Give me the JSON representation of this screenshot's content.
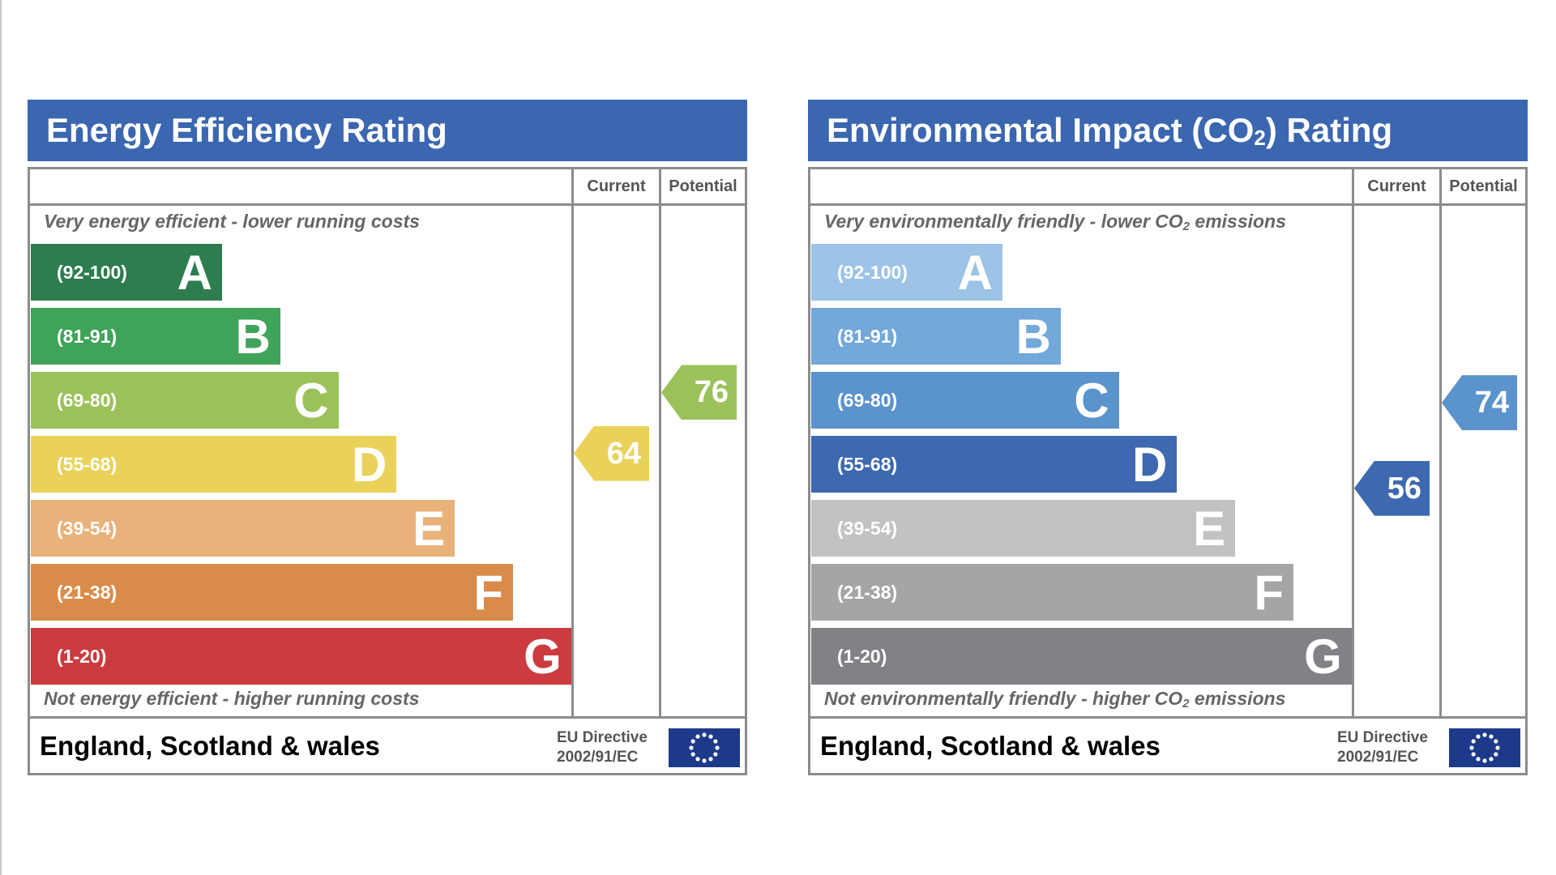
{
  "chart_data": [
    {
      "type": "bar",
      "title_main": "Energy Efficiency Rating",
      "title_sub": "",
      "title_suffix": "",
      "columns": {
        "current": "Current",
        "potential": "Potential"
      },
      "top_note_main": "Very energy efficient - lower running costs",
      "top_note_sub": "",
      "top_note_suffix": "",
      "bottom_note_main": "Not energy efficient - higher running costs",
      "bottom_note_sub": "",
      "bottom_note_suffix": "",
      "bands": [
        {
          "letter": "A",
          "range": "(92-100)",
          "min": 92,
          "max": 100,
          "color": "#2e7d4f"
        },
        {
          "letter": "B",
          "range": "(81-91)",
          "min": 81,
          "max": 91,
          "color": "#3fa35a"
        },
        {
          "letter": "C",
          "range": "(69-80)",
          "min": 69,
          "max": 80,
          "color": "#9bc25a"
        },
        {
          "letter": "D",
          "range": "(55-68)",
          "min": 55,
          "max": 68,
          "color": "#ead25a"
        },
        {
          "letter": "E",
          "range": "(39-54)",
          "min": 39,
          "max": 54,
          "color": "#e8b27a"
        },
        {
          "letter": "F",
          "range": "(21-38)",
          "min": 21,
          "max": 38,
          "color": "#d98c4a"
        },
        {
          "letter": "G",
          "range": "(1-20)",
          "min": 1,
          "max": 20,
          "color": "#cc3b3f"
        }
      ],
      "current": {
        "value": 64,
        "label": "64",
        "band": "D",
        "color": "#ead25a"
      },
      "potential": {
        "value": 76,
        "label": "76",
        "band": "C",
        "color": "#9bc25a"
      },
      "footer": {
        "region": "England, Scotland & wales",
        "directive_line1": "EU Directive",
        "directive_line2": "2002/91/EC"
      }
    },
    {
      "type": "bar",
      "title_main": "Environmental Impact (CO",
      "title_sub": "2",
      "title_suffix": ") Rating",
      "columns": {
        "current": "Current",
        "potential": "Potential"
      },
      "top_note_main": "Very environmentally friendly - lower CO",
      "top_note_sub": "2",
      "top_note_suffix": " emissions",
      "bottom_note_main": "Not environmentally friendly - higher CO",
      "bottom_note_sub": "2",
      "bottom_note_suffix": " emissions",
      "bands": [
        {
          "letter": "A",
          "range": "(92-100)",
          "min": 92,
          "max": 100,
          "color": "#9dc3e6"
        },
        {
          "letter": "B",
          "range": "(81-91)",
          "min": 81,
          "max": 91,
          "color": "#72a8da"
        },
        {
          "letter": "C",
          "range": "(69-80)",
          "min": 69,
          "max": 80,
          "color": "#5b93cc"
        },
        {
          "letter": "D",
          "range": "(55-68)",
          "min": 55,
          "max": 68,
          "color": "#3e69b0"
        },
        {
          "letter": "E",
          "range": "(39-54)",
          "min": 39,
          "max": 54,
          "color": "#c2c2c2"
        },
        {
          "letter": "F",
          "range": "(21-38)",
          "min": 21,
          "max": 38,
          "color": "#a5a5a8"
        },
        {
          "letter": "G",
          "range": "(1-20)",
          "min": 1,
          "max": 20,
          "color": "#828286"
        }
      ],
      "current": {
        "value": 56,
        "label": "56",
        "band": "D",
        "color": "#3e69b0"
      },
      "potential": {
        "value": 74,
        "label": "74",
        "band": "C",
        "color": "#5b93cc"
      },
      "footer": {
        "region": "England, Scotland & wales",
        "directive_line1": "EU Directive",
        "directive_line2": "2002/91/EC"
      }
    }
  ]
}
